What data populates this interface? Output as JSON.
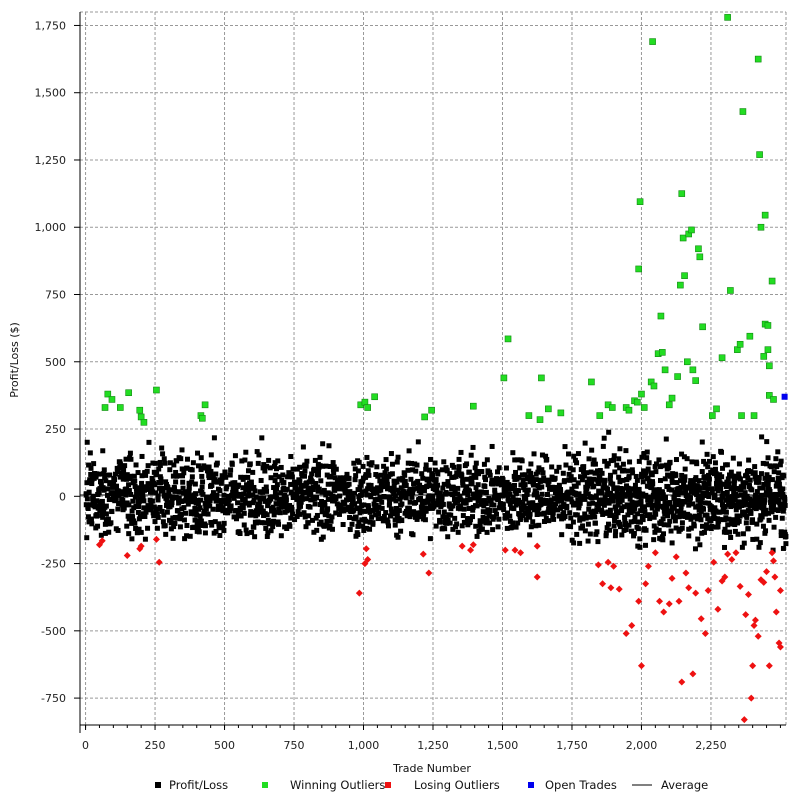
{
  "chart_data": {
    "type": "scatter",
    "xlabel": "Trade Number",
    "ylabel": "Profit/Loss ($)",
    "xlim": [
      -20,
      2520
    ],
    "ylim": [
      -850,
      1800
    ],
    "grid": true,
    "legend_placement": "bottom",
    "x_ticks": [
      0,
      250,
      500,
      750,
      1000,
      1250,
      1500,
      1750,
      2000,
      2250
    ],
    "x_tick_labels": [
      "0",
      "250",
      "500",
      "750",
      "1,000",
      "1,250",
      "1,500",
      "1,750",
      "2,000",
      "2,250"
    ],
    "y_ticks": [
      -750,
      -500,
      -250,
      0,
      250,
      500,
      750,
      1000,
      1250,
      1500,
      1750
    ],
    "y_tick_labels": [
      "-750",
      "-500",
      "-250",
      "0",
      "250",
      "500",
      "750",
      "1,000",
      "1,250",
      "1,500",
      "1,750"
    ],
    "average_value": 5,
    "series": [
      {
        "name": "Profit/Loss",
        "color": "#000000",
        "marker": "square",
        "bands": [
          {
            "x_range": [
              0,
              1750
            ],
            "y_range": [
              -160,
              270
            ],
            "count": 1750
          },
          {
            "x_range": [
              1750,
              2520
            ],
            "y_range": [
              -210,
              290
            ],
            "count": 950
          }
        ]
      },
      {
        "name": "Winning Outliers",
        "color": "#22dd22",
        "marker": "square",
        "points": [
          [
            70,
            330
          ],
          [
            80,
            380
          ],
          [
            95,
            360
          ],
          [
            125,
            330
          ],
          [
            155,
            385
          ],
          [
            195,
            320
          ],
          [
            200,
            295
          ],
          [
            210,
            275
          ],
          [
            255,
            395
          ],
          [
            415,
            300
          ],
          [
            420,
            290
          ],
          [
            430,
            340
          ],
          [
            990,
            340
          ],
          [
            1005,
            350
          ],
          [
            1015,
            330
          ],
          [
            1040,
            370
          ],
          [
            1220,
            295
          ],
          [
            1245,
            320
          ],
          [
            1395,
            335
          ],
          [
            1505,
            440
          ],
          [
            1520,
            585
          ],
          [
            1595,
            300
          ],
          [
            1640,
            440
          ],
          [
            1635,
            285
          ],
          [
            1665,
            325
          ],
          [
            1710,
            310
          ],
          [
            1820,
            425
          ],
          [
            1850,
            300
          ],
          [
            1880,
            340
          ],
          [
            1895,
            330
          ],
          [
            1945,
            330
          ],
          [
            1955,
            320
          ],
          [
            1975,
            355
          ],
          [
            1985,
            350
          ],
          [
            1990,
            845
          ],
          [
            1995,
            1095
          ],
          [
            2000,
            380
          ],
          [
            2010,
            330
          ],
          [
            2035,
            425
          ],
          [
            2040,
            1690
          ],
          [
            2045,
            410
          ],
          [
            2060,
            530
          ],
          [
            2070,
            670
          ],
          [
            2075,
            535
          ],
          [
            2085,
            470
          ],
          [
            2100,
            340
          ],
          [
            2110,
            365
          ],
          [
            2130,
            445
          ],
          [
            2140,
            785
          ],
          [
            2145,
            1125
          ],
          [
            2150,
            960
          ],
          [
            2155,
            820
          ],
          [
            2165,
            500
          ],
          [
            2170,
            975
          ],
          [
            2180,
            990
          ],
          [
            2185,
            470
          ],
          [
            2195,
            430
          ],
          [
            2205,
            920
          ],
          [
            2210,
            890
          ],
          [
            2220,
            630
          ],
          [
            2255,
            300
          ],
          [
            2270,
            325
          ],
          [
            2290,
            515
          ],
          [
            2310,
            1780
          ],
          [
            2320,
            765
          ],
          [
            2345,
            545
          ],
          [
            2355,
            565
          ],
          [
            2360,
            300
          ],
          [
            2365,
            1430
          ],
          [
            2390,
            595
          ],
          [
            2405,
            300
          ],
          [
            2420,
            1625
          ],
          [
            2425,
            1270
          ],
          [
            2430,
            1000
          ],
          [
            2440,
            520
          ],
          [
            2445,
            1045
          ],
          [
            2445,
            640
          ],
          [
            2455,
            545
          ],
          [
            2455,
            635
          ],
          [
            2460,
            485
          ],
          [
            2460,
            375
          ],
          [
            2470,
            800
          ],
          [
            2475,
            360
          ]
        ]
      },
      {
        "name": "Losing Outliers",
        "color": "#ee1111",
        "marker": "diamond",
        "points": [
          [
            50,
            -180
          ],
          [
            60,
            -165
          ],
          [
            150,
            -220
          ],
          [
            195,
            -195
          ],
          [
            200,
            -185
          ],
          [
            255,
            -160
          ],
          [
            265,
            -245
          ],
          [
            985,
            -360
          ],
          [
            1005,
            -250
          ],
          [
            1010,
            -195
          ],
          [
            1015,
            -235
          ],
          [
            1215,
            -215
          ],
          [
            1235,
            -285
          ],
          [
            1355,
            -185
          ],
          [
            1385,
            -200
          ],
          [
            1395,
            -180
          ],
          [
            1510,
            -200
          ],
          [
            1545,
            -200
          ],
          [
            1565,
            -210
          ],
          [
            1625,
            -300
          ],
          [
            1625,
            -185
          ],
          [
            1845,
            -255
          ],
          [
            1860,
            -325
          ],
          [
            1880,
            -245
          ],
          [
            1890,
            -340
          ],
          [
            1900,
            -260
          ],
          [
            1920,
            -345
          ],
          [
            1945,
            -510
          ],
          [
            1965,
            -480
          ],
          [
            1990,
            -390
          ],
          [
            2000,
            -630
          ],
          [
            2015,
            -325
          ],
          [
            2025,
            -260
          ],
          [
            2050,
            -210
          ],
          [
            2065,
            -390
          ],
          [
            2080,
            -430
          ],
          [
            2100,
            -400
          ],
          [
            2110,
            -305
          ],
          [
            2125,
            -225
          ],
          [
            2135,
            -390
          ],
          [
            2145,
            -690
          ],
          [
            2160,
            -285
          ],
          [
            2170,
            -340
          ],
          [
            2185,
            -660
          ],
          [
            2195,
            -360
          ],
          [
            2215,
            -455
          ],
          [
            2230,
            -510
          ],
          [
            2240,
            -350
          ],
          [
            2260,
            -245
          ],
          [
            2275,
            -420
          ],
          [
            2290,
            -315
          ],
          [
            2300,
            -300
          ],
          [
            2310,
            -215
          ],
          [
            2325,
            -235
          ],
          [
            2340,
            -210
          ],
          [
            2355,
            -335
          ],
          [
            2370,
            -830
          ],
          [
            2375,
            -440
          ],
          [
            2385,
            -365
          ],
          [
            2395,
            -750
          ],
          [
            2400,
            -630
          ],
          [
            2405,
            -480
          ],
          [
            2410,
            -460
          ],
          [
            2420,
            -520
          ],
          [
            2430,
            -310
          ],
          [
            2440,
            -320
          ],
          [
            2450,
            -280
          ],
          [
            2460,
            -630
          ],
          [
            2470,
            -210
          ],
          [
            2475,
            -240
          ],
          [
            2480,
            -300
          ],
          [
            2485,
            -430
          ],
          [
            2495,
            -545
          ],
          [
            2500,
            -560
          ],
          [
            2500,
            -350
          ]
        ]
      },
      {
        "name": "Open Trades",
        "color": "#0000ee",
        "marker": "square",
        "points": [
          [
            2515,
            370
          ]
        ]
      }
    ],
    "legend": [
      "Profit/Loss",
      "Winning Outliers",
      "Losing Outliers",
      "Open Trades",
      "Average"
    ]
  }
}
